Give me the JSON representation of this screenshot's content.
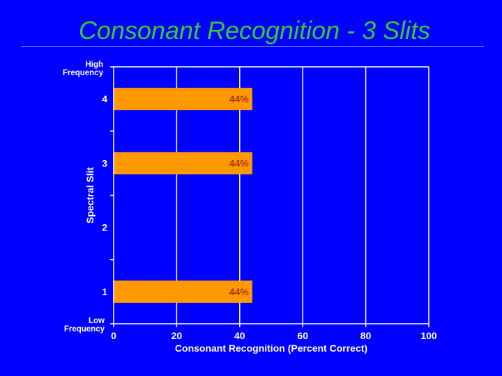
{
  "slide": {
    "title": "Consonant Recognition - 3 Slits"
  },
  "chart_data": {
    "type": "bar",
    "orientation": "horizontal",
    "title": "",
    "xlabel": "Consonant Recognition (Percent Correct)",
    "ylabel": "Spectral Slit",
    "xlim": [
      0,
      100
    ],
    "xticks": [
      0,
      20,
      40,
      60,
      80,
      100
    ],
    "categories": [
      "4",
      "3",
      "2",
      "1"
    ],
    "values": [
      44,
      44,
      null,
      44
    ],
    "data_labels": [
      "44%",
      "44%",
      "",
      "44%"
    ],
    "y_top_label_lines": [
      "High",
      "Frequency"
    ],
    "y_bottom_label_lines": [
      "Low",
      "Frequency"
    ],
    "grid": "vertical",
    "bar_color": "#ff9900",
    "background_color": "#0000ff",
    "grid_color": "#ffffff",
    "title_color": "#33cc33",
    "data_label_color": "#aa3300"
  }
}
